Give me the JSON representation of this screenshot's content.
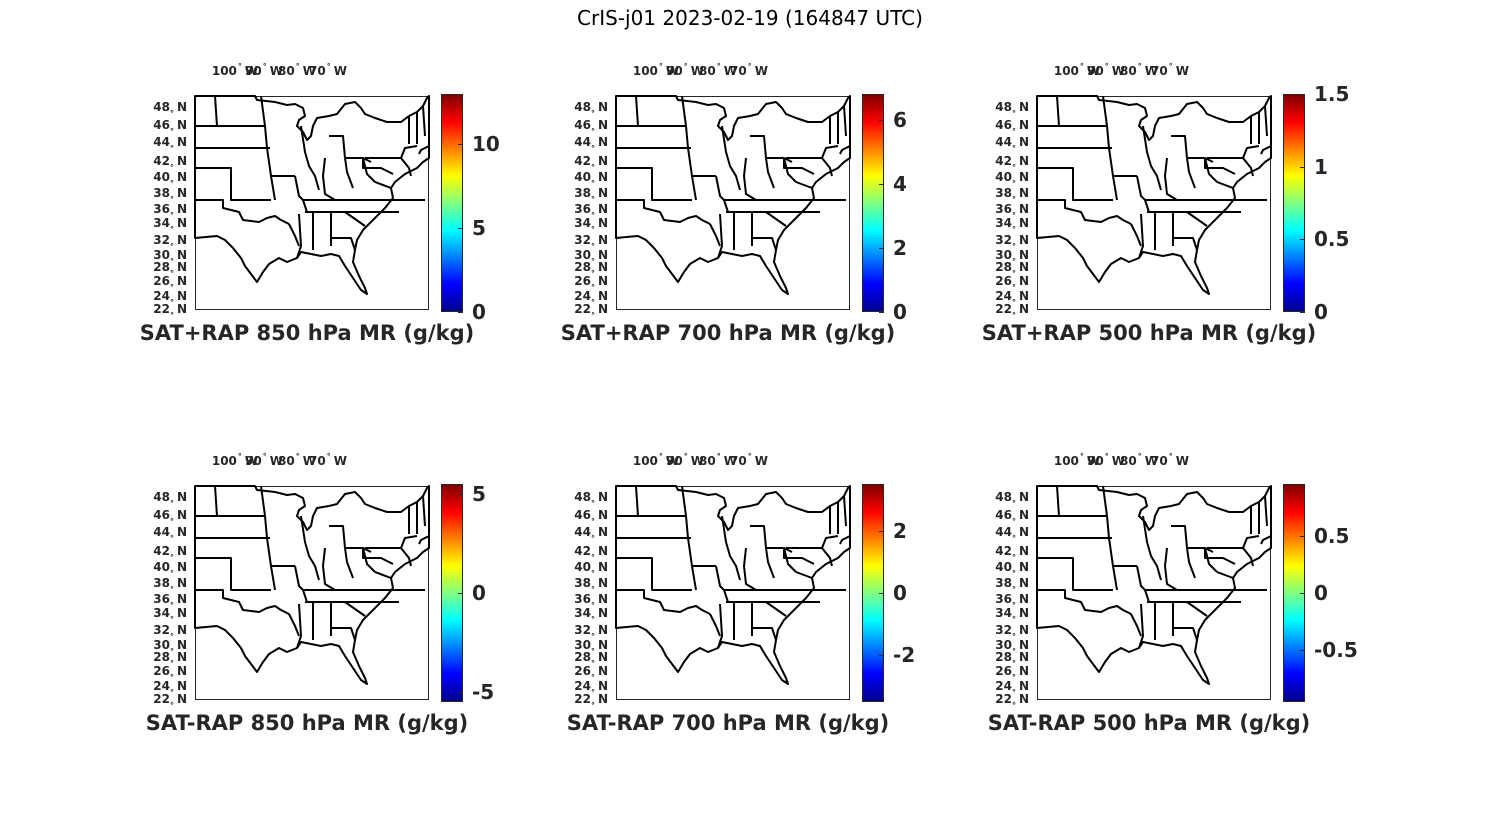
{
  "title": "CrIS-j01 2023-02-19 (164847 UTC)",
  "lon_labels": [
    {
      "num": "100",
      "dir": "W"
    },
    {
      "num": "90",
      "dir": "W"
    },
    {
      "num": "80",
      "dir": "W"
    },
    {
      "num": "70",
      "dir": "W"
    }
  ],
  "lat_labels": [
    {
      "num": "48",
      "dir": "N"
    },
    {
      "num": "46",
      "dir": "N"
    },
    {
      "num": "44",
      "dir": "N"
    },
    {
      "num": "42",
      "dir": "N"
    },
    {
      "num": "40",
      "dir": "N"
    },
    {
      "num": "38",
      "dir": "N"
    },
    {
      "num": "36",
      "dir": "N"
    },
    {
      "num": "34",
      "dir": "N"
    },
    {
      "num": "32",
      "dir": "N"
    },
    {
      "num": "30",
      "dir": "N"
    },
    {
      "num": "28",
      "dir": "N"
    },
    {
      "num": "26",
      "dir": "N"
    },
    {
      "num": "24",
      "dir": "N"
    },
    {
      "num": "22",
      "dir": "N"
    }
  ],
  "degree_symbol": "°",
  "panels": [
    {
      "title": "SAT+RAP 850 hPa MR (g/kg)",
      "cbar_range": [
        0,
        13
      ],
      "cbar_ticks": [
        "0",
        "5",
        "10"
      ],
      "cbar_tick_values": [
        0,
        5,
        10
      ]
    },
    {
      "title": "SAT+RAP 700 hPa MR (g/kg)",
      "cbar_range": [
        0,
        6.8
      ],
      "cbar_ticks": [
        "0",
        "2",
        "4",
        "6"
      ],
      "cbar_tick_values": [
        0,
        2,
        4,
        6
      ]
    },
    {
      "title": "SAT+RAP 500 hPa MR (g/kg)",
      "cbar_range": [
        0,
        1.5
      ],
      "cbar_ticks": [
        "0",
        "0.5",
        "1",
        "1.5"
      ],
      "cbar_tick_values": [
        0,
        0.5,
        1,
        1.5
      ]
    },
    {
      "title": "SAT-RAP 850 hPa MR (g/kg)",
      "cbar_range": [
        -5.5,
        5.5
      ],
      "cbar_ticks": [
        "-5",
        "0",
        "5"
      ],
      "cbar_tick_values": [
        -5,
        0,
        5
      ]
    },
    {
      "title": "SAT-RAP 700 hPa MR (g/kg)",
      "cbar_range": [
        -3.5,
        3.5
      ],
      "cbar_ticks": [
        "-2",
        "0",
        "2"
      ],
      "cbar_tick_values": [
        -2,
        0,
        2
      ]
    },
    {
      "title": "SAT-RAP 500 hPa MR (g/kg)",
      "cbar_range": [
        -0.95,
        0.95
      ],
      "cbar_ticks": [
        "-0.5",
        "0",
        "0.5"
      ],
      "cbar_tick_values": [
        -0.5,
        0,
        0.5
      ]
    }
  ]
}
